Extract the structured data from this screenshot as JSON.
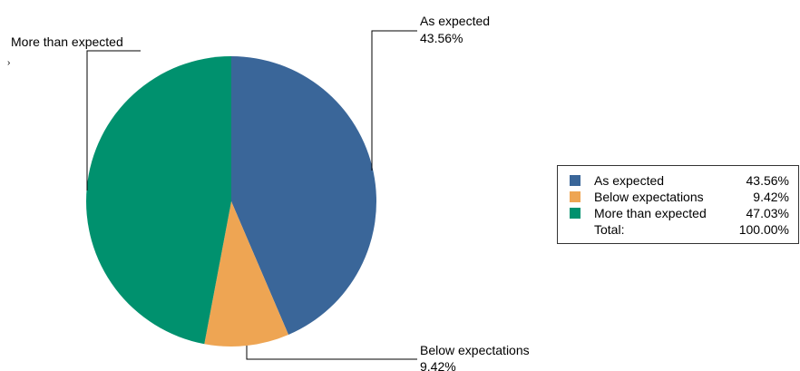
{
  "chart_data": {
    "type": "pie",
    "slices": [
      {
        "label": "As expected",
        "value": 43.56,
        "value_label": "43.56%",
        "color": "#3a6699"
      },
      {
        "label": "Below expectations",
        "value": 9.42,
        "value_label": "9.42%",
        "color": "#eea553"
      },
      {
        "label": "More than expected",
        "value": 47.03,
        "value_label": "47.03%",
        "color": "#00916e"
      }
    ],
    "legend_placement": "right",
    "legend": {
      "total_label": "Total:",
      "total_value": "100.00%"
    },
    "stray_mark": "›"
  }
}
